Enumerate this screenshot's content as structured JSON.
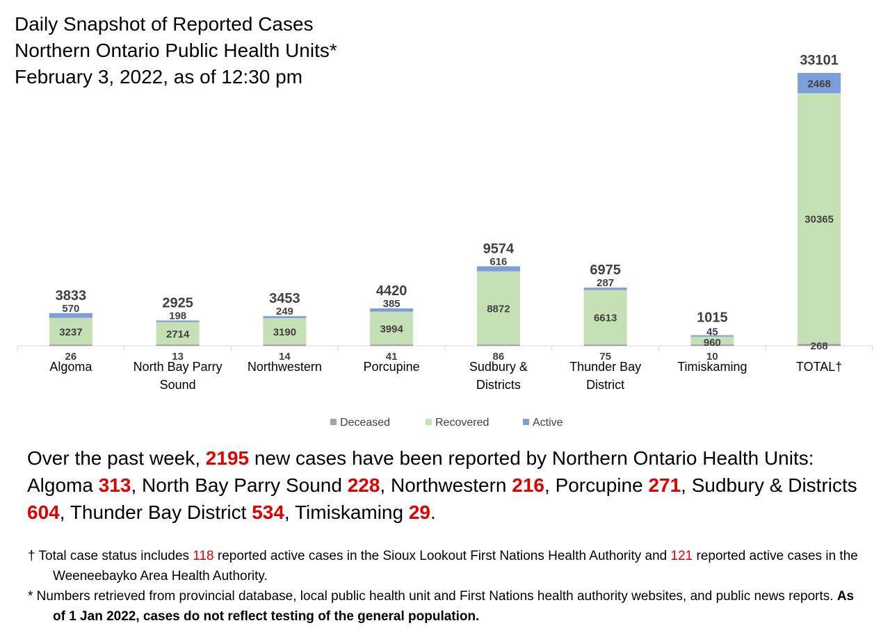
{
  "title": {
    "line1": "Daily Snapshot of Reported Cases",
    "line2": "Northern Ontario Public Health Units*",
    "line3": "February 3, 2022, as of 12:30 pm"
  },
  "colors": {
    "deceased": "#a5a5a5",
    "recovered": "#c5e0b4",
    "active": "#7c9fd9",
    "highlight": "#e00000"
  },
  "chart_data": {
    "type": "bar",
    "stacked": true,
    "categories": [
      [
        "Algoma"
      ],
      [
        "North Bay Parry",
        "Sound"
      ],
      [
        "Northwestern"
      ],
      [
        "Porcupine"
      ],
      [
        "Sudbury &",
        "Districts"
      ],
      [
        "Thunder Bay",
        "District"
      ],
      [
        "Timiskaming"
      ],
      [
        "TOTAL†"
      ]
    ],
    "series": [
      {
        "name": "Deceased",
        "values": [
          26,
          13,
          14,
          41,
          86,
          75,
          10,
          268
        ]
      },
      {
        "name": "Recovered",
        "values": [
          3237,
          2714,
          3190,
          3994,
          8872,
          6613,
          960,
          30365
        ]
      },
      {
        "name": "Active",
        "values": [
          570,
          198,
          249,
          385,
          616,
          287,
          45,
          2468
        ]
      }
    ],
    "totals": [
      3833,
      2925,
      3453,
      4420,
      9574,
      6975,
      1015,
      33101
    ],
    "ylim": [
      0,
      33101
    ],
    "legend_position": "bottom",
    "grid": false
  },
  "summary": {
    "intro": "Over the past week, ",
    "new_cases": "2195",
    "after": " new cases have been reported by Northern Ontario Health Units: ",
    "items": [
      {
        "name": "Algoma ",
        "value": "313",
        "sep": ", "
      },
      {
        "name": "North Bay Parry Sound ",
        "value": "228",
        "sep": ", "
      },
      {
        "name": "Northwestern ",
        "value": "216",
        "sep": ", "
      },
      {
        "name": "Porcupine ",
        "value": "271",
        "sep": ", "
      },
      {
        "name": "Sudbury & Districts ",
        "value": "604",
        "sep": ", "
      },
      {
        "name": "Thunder Bay District ",
        "value": "534",
        "sep": ", "
      },
      {
        "name": "Timiskaming ",
        "value": "29",
        "sep": "."
      }
    ]
  },
  "footnotes": {
    "dagger_a": "† Total case status includes ",
    "dagger_n1": "118",
    "dagger_b": " reported active cases in the Sioux Lookout First Nations Health Authority and ",
    "dagger_n2": "121",
    "dagger_c": " reported active cases in the Weeneebayko Area Health Authority.",
    "star_a": "* Numbers retrieved from provincial database, local public health unit and First Nations health authority websites, and public news reports. ",
    "star_bold": "As of 1 Jan 2022, cases do not reflect testing of the general population."
  }
}
